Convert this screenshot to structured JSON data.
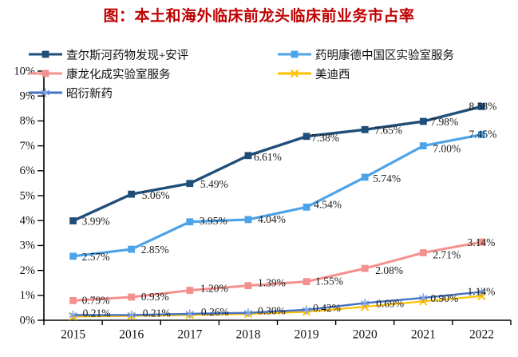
{
  "title": {
    "text": "图：本土和海外临床前龙头临床前业务市占率",
    "color": "#C00000"
  },
  "chart_data": {
    "type": "line",
    "title": "图：本土和海外临床前龙头临床前业务市占率",
    "x": [
      "2015",
      "2016",
      "2017",
      "2018",
      "2019",
      "2020",
      "2021",
      "2022"
    ],
    "xlabel": "",
    "ylabel": "",
    "ylim": [
      0,
      10
    ],
    "yticks": [
      "0%",
      "1%",
      "2%",
      "3%",
      "4%",
      "5%",
      "6%",
      "7%",
      "8%",
      "9%",
      "10%"
    ],
    "grid": false,
    "legend_position": "top",
    "series": [
      {
        "name": "查尔斯河药物发现+安评",
        "color": "#1F4E79",
        "marker": "square",
        "values": [
          3.99,
          5.06,
          5.49,
          6.61,
          7.38,
          7.65,
          7.98,
          8.58
        ],
        "labels": [
          "3.99%",
          "5.06%",
          "5.49%",
          "6.61%",
          "7.38%",
          "7.65%",
          "7.98%",
          "8.58%"
        ]
      },
      {
        "name": "药明康德中国区实验室服务",
        "color": "#4DA3E8",
        "marker": "square",
        "values": [
          2.57,
          2.85,
          3.95,
          4.04,
          4.54,
          5.74,
          7.0,
          7.45
        ],
        "labels": [
          "2.57%",
          "2.85%",
          "3.95%",
          "4.04%",
          "4.54%",
          "5.74%",
          "7.00%",
          "7.45%"
        ]
      },
      {
        "name": "康龙化成实验室服务",
        "color": "#F4918E",
        "marker": "square",
        "values": [
          0.79,
          0.93,
          1.2,
          1.39,
          1.55,
          2.08,
          2.71,
          3.14
        ],
        "labels": [
          "0.79%",
          "0.93%",
          "1.20%",
          "1.39%",
          "1.55%",
          "2.08%",
          "2.71%",
          "3.14%"
        ]
      },
      {
        "name": "美迪西",
        "color": "#FFC000",
        "marker": "x",
        "values": [
          0.15,
          0.17,
          0.21,
          0.25,
          0.34,
          0.54,
          0.76,
          0.97
        ],
        "labels": []
      },
      {
        "name": "昭衍新药",
        "color": "#4472C4",
        "marker": "asterisk",
        "marker_color": "#7FA3E6",
        "values": [
          0.21,
          0.21,
          0.26,
          0.3,
          0.42,
          0.69,
          0.9,
          1.14
        ],
        "labels": [
          "0.21%",
          "0.21%",
          "0.26%",
          "0.30%",
          "0.42%",
          "0.69%",
          "0.90%",
          "1.14%"
        ]
      }
    ]
  }
}
